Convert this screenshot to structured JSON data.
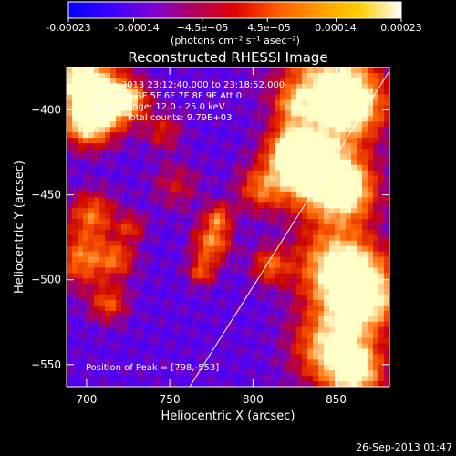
{
  "colorbar": {
    "tick_labels": [
      "-0.00023",
      "-0.00014",
      "−4.5e−05",
      "4.5e−05",
      "0.00014",
      "0.00023"
    ],
    "tick_values": [
      -0.00023,
      -0.00014,
      -4.5e-05,
      4.5e-05,
      0.00014,
      0.00023
    ],
    "range": [
      -0.00023,
      0.00023
    ],
    "units_label": "(photons cm⁻² s⁻¹ asec⁻²)",
    "colors": [
      "#0000ff",
      "#3a00ff",
      "#7b00d8",
      "#b00060",
      "#e00000",
      "#ff5a00",
      "#ff9a00",
      "#ffd000",
      "#ffffff"
    ]
  },
  "chart_data": {
    "type": "heatmap",
    "title": "Reconstructed RHESSI Image",
    "xlabel": "Heliocentric X (arcsec)",
    "ylabel": "Heliocentric Y (arcsec)",
    "xlim": [
      688,
      882
    ],
    "ylim": [
      -563,
      -375
    ],
    "xticks": [
      700,
      750,
      800,
      850
    ],
    "yticks": [
      -550,
      -500,
      -450,
      -400
    ],
    "xtick_labels": [
      "700",
      "750",
      "800",
      "850"
    ],
    "ytick_labels": [
      "−550",
      "−500",
      "−450",
      "−400"
    ],
    "annotations": [
      "25-Sep-2013 23:12:40.000 to 23:18:52.000",
      "Detectors: 3F 5F 6F 7F 8F 9F Att 0",
      "Energy Range: 12.0 - 25.0 keV",
      "Clean     Total counts: 9.79E+03"
    ],
    "peak_label": "Position of Peak = [798,-553]",
    "limb_line": {
      "x": [
        762,
        882
      ],
      "y": [
        -563,
        -377
      ]
    }
  },
  "footer": {
    "timestamp": "26-Sep-2013 01:47"
  }
}
